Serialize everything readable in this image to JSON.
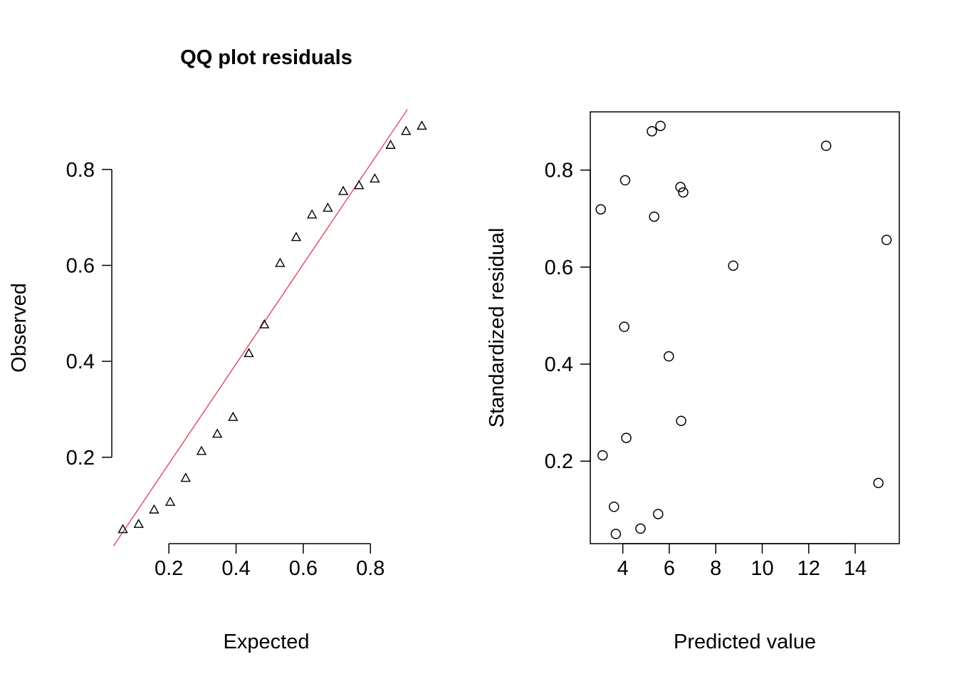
{
  "chart_data": [
    {
      "type": "scatter",
      "title": "QQ plot residuals",
      "xlabel": "Expected",
      "ylabel": "Observed",
      "xlim": [
        0.03,
        0.95
      ],
      "ylim": [
        0.02,
        0.92
      ],
      "x_ticks": [
        "0.2",
        "0.4",
        "0.6",
        "0.8"
      ],
      "y_ticks": [
        "0.2",
        "0.4",
        "0.6",
        "0.8"
      ],
      "marker": "triangle",
      "points": [
        {
          "x": 0.063,
          "y": 0.05
        },
        {
          "x": 0.11,
          "y": 0.061
        },
        {
          "x": 0.156,
          "y": 0.091
        },
        {
          "x": 0.204,
          "y": 0.107
        },
        {
          "x": 0.25,
          "y": 0.157
        },
        {
          "x": 0.297,
          "y": 0.213
        },
        {
          "x": 0.344,
          "y": 0.249
        },
        {
          "x": 0.391,
          "y": 0.284
        },
        {
          "x": 0.438,
          "y": 0.417
        },
        {
          "x": 0.484,
          "y": 0.477
        },
        {
          "x": 0.531,
          "y": 0.605
        },
        {
          "x": 0.579,
          "y": 0.659
        },
        {
          "x": 0.626,
          "y": 0.706
        },
        {
          "x": 0.673,
          "y": 0.72
        },
        {
          "x": 0.719,
          "y": 0.755
        },
        {
          "x": 0.766,
          "y": 0.767
        },
        {
          "x": 0.813,
          "y": 0.781
        },
        {
          "x": 0.86,
          "y": 0.851
        },
        {
          "x": 0.906,
          "y": 0.88
        },
        {
          "x": 0.953,
          "y": 0.891
        }
      ],
      "reference_line": {
        "color": "#DF536B",
        "from": {
          "x": 0.035,
          "y": 0.015
        },
        "to": {
          "x": 0.91,
          "y": 0.925
        }
      }
    },
    {
      "type": "scatter",
      "title": "",
      "xlabel": "Predicted value",
      "ylabel": "Standardized residual",
      "xlim": [
        2.6,
        15.9
      ],
      "ylim": [
        0.03,
        0.92
      ],
      "x_ticks": [
        "4",
        "6",
        "8",
        "10",
        "12",
        "14"
      ],
      "y_ticks": [
        "0.2",
        "0.4",
        "0.6",
        "0.8"
      ],
      "marker": "circle",
      "points": [
        {
          "x": 3.05,
          "y": 0.719
        },
        {
          "x": 3.13,
          "y": 0.212
        },
        {
          "x": 3.62,
          "y": 0.106
        },
        {
          "x": 3.7,
          "y": 0.05
        },
        {
          "x": 4.06,
          "y": 0.477
        },
        {
          "x": 4.1,
          "y": 0.779
        },
        {
          "x": 4.15,
          "y": 0.248
        },
        {
          "x": 4.76,
          "y": 0.061
        },
        {
          "x": 5.25,
          "y": 0.88
        },
        {
          "x": 5.35,
          "y": 0.704
        },
        {
          "x": 5.52,
          "y": 0.091
        },
        {
          "x": 5.62,
          "y": 0.891
        },
        {
          "x": 5.98,
          "y": 0.416
        },
        {
          "x": 6.48,
          "y": 0.765
        },
        {
          "x": 6.51,
          "y": 0.283
        },
        {
          "x": 6.6,
          "y": 0.754
        },
        {
          "x": 8.75,
          "y": 0.603
        },
        {
          "x": 12.75,
          "y": 0.85
        },
        {
          "x": 15.0,
          "y": 0.155
        },
        {
          "x": 15.35,
          "y": 0.656
        }
      ]
    }
  ]
}
